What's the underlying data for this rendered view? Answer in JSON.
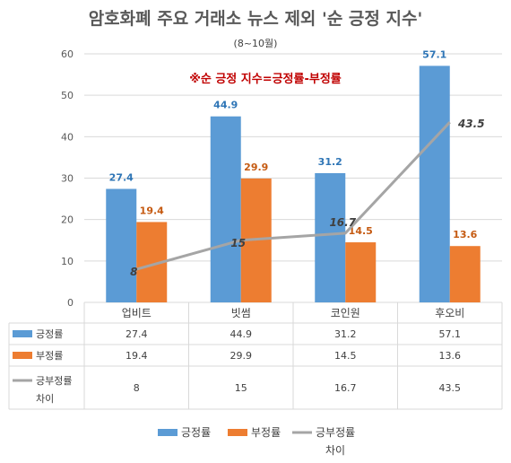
{
  "chart_data": {
    "type": "bar",
    "title": "암호화폐 주요 거래소 뉴스 제외 '순 긍정 지수'",
    "subtitle": "(8~10월)",
    "annotation": "※순 긍정 지수=긍정률-부정률",
    "categories": [
      "업비트",
      "빗썸",
      "코인원",
      "후오비"
    ],
    "ylim": [
      0,
      60
    ],
    "yticks": [
      0,
      10,
      20,
      30,
      40,
      50,
      60
    ],
    "grid": true,
    "legend_position": "bottom",
    "data_table": true,
    "series": [
      {
        "name": "긍정률",
        "type": "bar",
        "color": "#5b9bd5",
        "label_color": "#2e75b6",
        "values": [
          27.4,
          44.9,
          31.2,
          57.1
        ]
      },
      {
        "name": "부정률",
        "type": "bar",
        "color": "#ed7d31",
        "label_color": "#c55a11",
        "values": [
          19.4,
          29.9,
          14.5,
          13.6
        ]
      },
      {
        "name": "긍부정률 차이",
        "name_lines": [
          "긍부정률",
          "차이"
        ],
        "type": "line",
        "color": "#a5a5a5",
        "values": [
          8,
          15,
          16.7,
          43.5
        ]
      }
    ]
  }
}
